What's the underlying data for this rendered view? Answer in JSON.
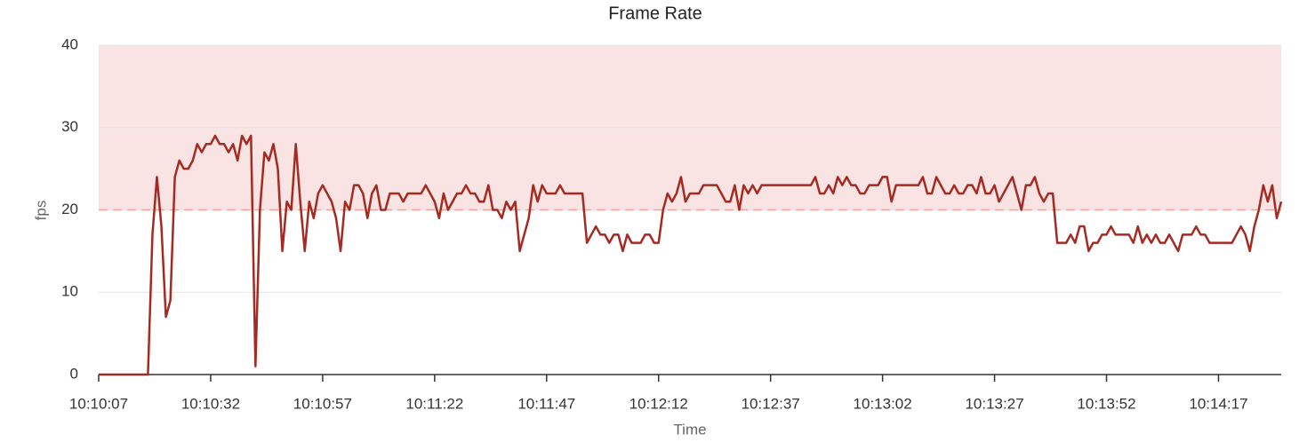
{
  "chart_data": {
    "type": "line",
    "title": "Frame Rate",
    "x_label": "Time",
    "y_label": "fps",
    "color": "#a52a22",
    "grid": true,
    "band": [
      20,
      40
    ],
    "band_color": "#f9e3e3",
    "band_line_color": "#e9a39b",
    "xlim": [
      "10:10:07",
      "10:14:31"
    ],
    "xticks": [
      "10:10:07",
      "10:10:32",
      "10:10:57",
      "10:11:22",
      "10:11:47",
      "10:12:12",
      "10:12:37",
      "10:13:02",
      "10:13:27",
      "10:13:52",
      "10:14:17"
    ],
    "ylim": [
      0,
      40
    ],
    "yticks": [
      0,
      10,
      20,
      30,
      40
    ],
    "x": [
      "10:10:07",
      "10:10:08",
      "10:10:09",
      "10:10:10",
      "10:10:11",
      "10:10:12",
      "10:10:13",
      "10:10:14",
      "10:10:15",
      "10:10:16",
      "10:10:17",
      "10:10:18",
      "10:10:19",
      "10:10:20",
      "10:10:21",
      "10:10:22",
      "10:10:23",
      "10:10:24",
      "10:10:25",
      "10:10:26",
      "10:10:27",
      "10:10:28",
      "10:10:29",
      "10:10:30",
      "10:10:31",
      "10:10:32",
      "10:10:33",
      "10:10:34",
      "10:10:35",
      "10:10:36",
      "10:10:37",
      "10:10:38",
      "10:10:39",
      "10:10:40",
      "10:10:41",
      "10:10:42",
      "10:10:43",
      "10:10:44",
      "10:10:45",
      "10:10:46",
      "10:10:47",
      "10:10:48",
      "10:10:49",
      "10:10:50",
      "10:10:51",
      "10:10:52",
      "10:10:53",
      "10:10:54",
      "10:10:55",
      "10:10:56",
      "10:10:57",
      "10:10:58",
      "10:10:59",
      "10:11:00",
      "10:11:01",
      "10:11:02",
      "10:11:03",
      "10:11:04",
      "10:11:05",
      "10:11:06",
      "10:11:07",
      "10:11:08",
      "10:11:09",
      "10:11:10",
      "10:11:11",
      "10:11:12",
      "10:11:13",
      "10:11:14",
      "10:11:15",
      "10:11:16",
      "10:11:17",
      "10:11:18",
      "10:11:19",
      "10:11:20",
      "10:11:21",
      "10:11:22",
      "10:11:23",
      "10:11:24",
      "10:11:25",
      "10:11:26",
      "10:11:27",
      "10:11:28",
      "10:11:29",
      "10:11:30",
      "10:11:31",
      "10:11:32",
      "10:11:33",
      "10:11:34",
      "10:11:35",
      "10:11:36",
      "10:11:37",
      "10:11:38",
      "10:11:39",
      "10:11:40",
      "10:11:41",
      "10:11:42",
      "10:11:43",
      "10:11:44",
      "10:11:45",
      "10:11:46",
      "10:11:47",
      "10:11:48",
      "10:11:49",
      "10:11:50",
      "10:11:51",
      "10:11:52",
      "10:11:53",
      "10:11:54",
      "10:11:55",
      "10:11:56",
      "10:11:57",
      "10:11:58",
      "10:11:59",
      "10:12:00",
      "10:12:01",
      "10:12:02",
      "10:12:03",
      "10:12:04",
      "10:12:05",
      "10:12:06",
      "10:12:07",
      "10:12:08",
      "10:12:09",
      "10:12:10",
      "10:12:11",
      "10:12:12",
      "10:12:13",
      "10:12:14",
      "10:12:15",
      "10:12:16",
      "10:12:17",
      "10:12:18",
      "10:12:19",
      "10:12:20",
      "10:12:21",
      "10:12:22",
      "10:12:23",
      "10:12:24",
      "10:12:25",
      "10:12:26",
      "10:12:27",
      "10:12:28",
      "10:12:29",
      "10:12:30",
      "10:12:31",
      "10:12:32",
      "10:12:33",
      "10:12:34",
      "10:12:35",
      "10:12:36",
      "10:12:37",
      "10:12:38",
      "10:12:39",
      "10:12:40",
      "10:12:41",
      "10:12:42",
      "10:12:43",
      "10:12:44",
      "10:12:45",
      "10:12:46",
      "10:12:47",
      "10:12:48",
      "10:12:49",
      "10:12:50",
      "10:12:51",
      "10:12:52",
      "10:12:53",
      "10:12:54",
      "10:12:55",
      "10:12:56",
      "10:12:57",
      "10:12:58",
      "10:12:59",
      "10:13:00",
      "10:13:01",
      "10:13:02",
      "10:13:03",
      "10:13:04",
      "10:13:05",
      "10:13:06",
      "10:13:07",
      "10:13:08",
      "10:13:09",
      "10:13:10",
      "10:13:11",
      "10:13:12",
      "10:13:13",
      "10:13:14",
      "10:13:15",
      "10:13:16",
      "10:13:17",
      "10:13:18",
      "10:13:19",
      "10:13:20",
      "10:13:21",
      "10:13:22",
      "10:13:23",
      "10:13:24",
      "10:13:25",
      "10:13:26",
      "10:13:27",
      "10:13:28",
      "10:13:29",
      "10:13:30",
      "10:13:31",
      "10:13:32",
      "10:13:33",
      "10:13:34",
      "10:13:35",
      "10:13:36",
      "10:13:37",
      "10:13:38",
      "10:13:39",
      "10:13:40",
      "10:13:41",
      "10:13:42",
      "10:13:43",
      "10:13:44",
      "10:13:45",
      "10:13:46",
      "10:13:47",
      "10:13:48",
      "10:13:49",
      "10:13:50",
      "10:13:51",
      "10:13:52",
      "10:13:53",
      "10:13:54",
      "10:13:55",
      "10:13:56",
      "10:13:57",
      "10:13:58",
      "10:13:59",
      "10:14:00",
      "10:14:01",
      "10:14:02",
      "10:14:03",
      "10:14:04",
      "10:14:05",
      "10:14:06",
      "10:14:07",
      "10:14:08",
      "10:14:09",
      "10:14:10",
      "10:14:11",
      "10:14:12",
      "10:14:13",
      "10:14:14",
      "10:14:15",
      "10:14:16",
      "10:14:17",
      "10:14:18",
      "10:14:19",
      "10:14:20",
      "10:14:21",
      "10:14:22",
      "10:14:23",
      "10:14:24",
      "10:14:25",
      "10:14:26",
      "10:14:27",
      "10:14:28",
      "10:14:29",
      "10:14:30",
      "10:14:31"
    ],
    "values": [
      0,
      0,
      0,
      0,
      0,
      0,
      0,
      0,
      0,
      0,
      0,
      0,
      17,
      24,
      18,
      7,
      9,
      24,
      26,
      25,
      25,
      26,
      28,
      27,
      28,
      28,
      29,
      28,
      28,
      27,
      28,
      26,
      29,
      28,
      29,
      1,
      20,
      27,
      26,
      28,
      25,
      15,
      21,
      20,
      28,
      21,
      15,
      21,
      19,
      22,
      23,
      22,
      21,
      19,
      15,
      21,
      20,
      23,
      23,
      22,
      19,
      22,
      23,
      20,
      20,
      22,
      22,
      22,
      21,
      22,
      22,
      22,
      22,
      23,
      22,
      21,
      19,
      22,
      20,
      21,
      22,
      22,
      23,
      22,
      22,
      21,
      21,
      23,
      20,
      20,
      19,
      21,
      20,
      21,
      15,
      17,
      19,
      23,
      21,
      23,
      22,
      22,
      22,
      23,
      22,
      22,
      22,
      22,
      22,
      16,
      17,
      18,
      17,
      17,
      16,
      17,
      17,
      15,
      17,
      16,
      16,
      16,
      17,
      17,
      16,
      16,
      20,
      22,
      21,
      22,
      24,
      21,
      22,
      22,
      22,
      23,
      23,
      23,
      23,
      22,
      21,
      21,
      23,
      20,
      23,
      22,
      23,
      22,
      23,
      23,
      23,
      23,
      23,
      23,
      23,
      23,
      23,
      23,
      23,
      23,
      24,
      22,
      22,
      23,
      22,
      24,
      23,
      24,
      23,
      23,
      22,
      22,
      23,
      23,
      23,
      24,
      24,
      21,
      23,
      23,
      23,
      23,
      23,
      23,
      24,
      22,
      22,
      24,
      23,
      22,
      22,
      23,
      22,
      22,
      23,
      23,
      22,
      24,
      22,
      22,
      23,
      21,
      22,
      23,
      24,
      22,
      20,
      23,
      23,
      24,
      22,
      21,
      22,
      22,
      16,
      16,
      16,
      17,
      16,
      18,
      18,
      15,
      16,
      16,
      17,
      17,
      18,
      17,
      17,
      17,
      17,
      16,
      18,
      16,
      17,
      16,
      17,
      16,
      16,
      17,
      16,
      15,
      17,
      17,
      17,
      18,
      17,
      17,
      16,
      16,
      16,
      16,
      16,
      16,
      17,
      18,
      17,
      15,
      18,
      20,
      23,
      21,
      23,
      19,
      21
    ]
  }
}
